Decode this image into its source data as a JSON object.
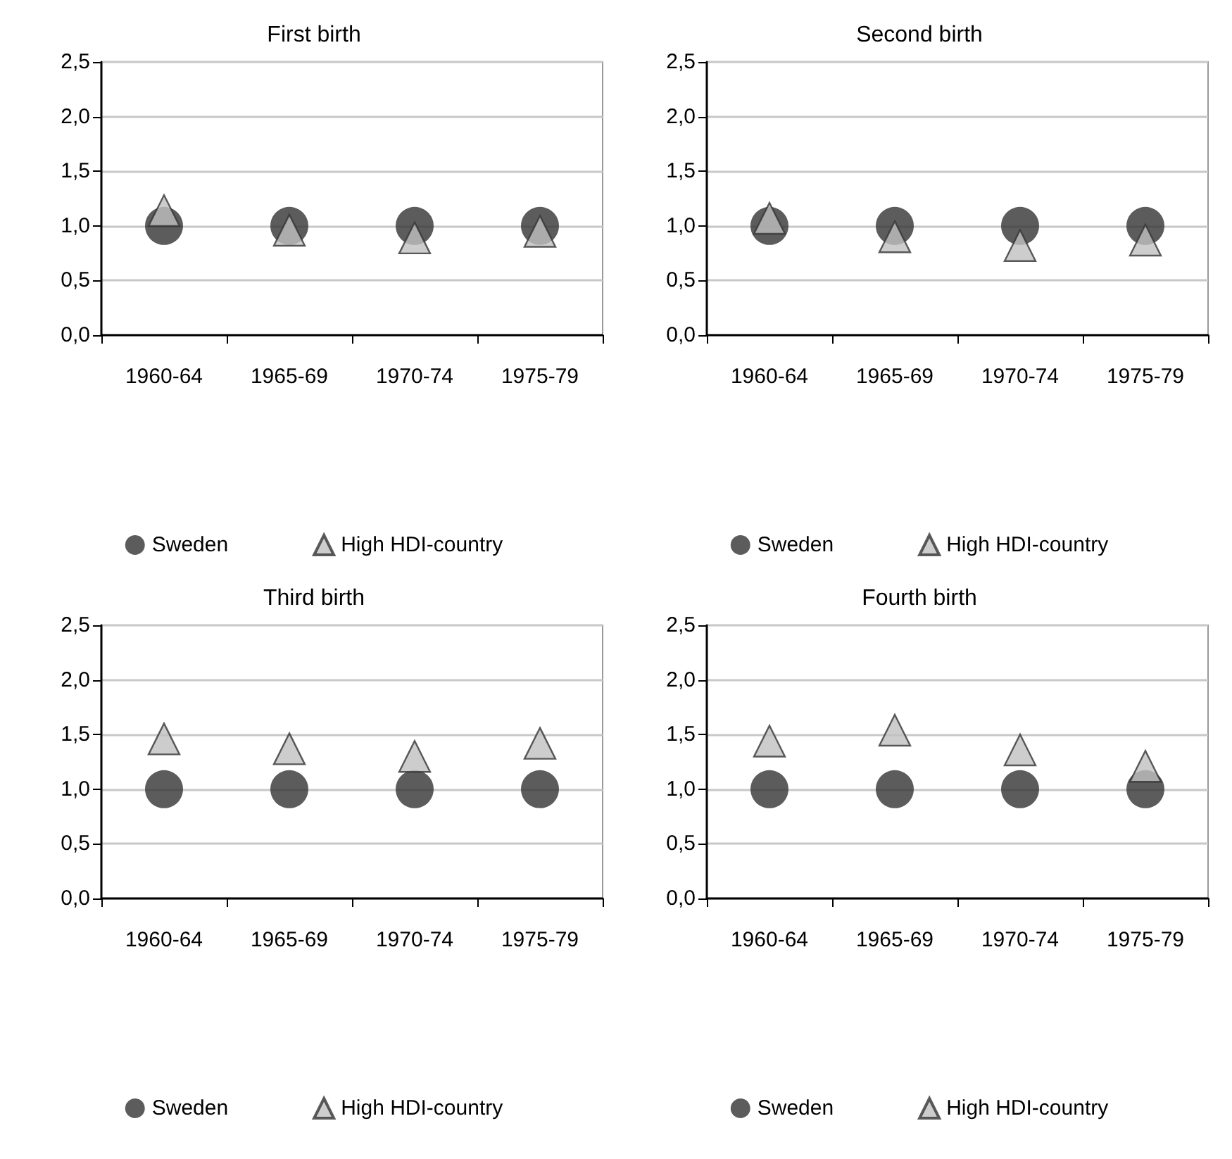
{
  "chart_data": [
    {
      "type": "scatter",
      "title": "First birth",
      "categories": [
        "1960-64",
        "1965-69",
        "1970-74",
        "1975-79"
      ],
      "series": [
        {
          "name": "Sweden",
          "color": "#333333",
          "marker": "circle",
          "values": [
            1.0,
            1.0,
            1.0,
            1.0
          ]
        },
        {
          "name": "High HDI-country",
          "color": "#c0c0c0",
          "marker": "triangle",
          "values": [
            1.14,
            0.96,
            0.89,
            0.95
          ]
        }
      ],
      "ylim": [
        0,
        2.5
      ],
      "yticks": [
        {
          "value": 0,
          "label": "0,0"
        },
        {
          "value": 0.5,
          "label": "0,5"
        },
        {
          "value": 1,
          "label": "1,0"
        },
        {
          "value": 1.5,
          "label": "1,5"
        },
        {
          "value": 2,
          "label": "2,0"
        },
        {
          "value": 2.5,
          "label": "2,5"
        }
      ],
      "grid": "y",
      "legend": "bottom"
    },
    {
      "type": "scatter",
      "title": "Second birth",
      "categories": [
        "1960-64",
        "1965-69",
        "1970-74",
        "1975-79"
      ],
      "series": [
        {
          "name": "Sweden",
          "color": "#333333",
          "marker": "circle",
          "values": [
            1.0,
            1.0,
            1.0,
            1.0
          ]
        },
        {
          "name": "High HDI-country",
          "color": "#c0c0c0",
          "marker": "triangle",
          "values": [
            1.07,
            0.9,
            0.82,
            0.87
          ]
        }
      ],
      "ylim": [
        0,
        2.5
      ],
      "yticks": [
        {
          "value": 0,
          "label": "0,0"
        },
        {
          "value": 0.5,
          "label": "0,5"
        },
        {
          "value": 1,
          "label": "1,0"
        },
        {
          "value": 1.5,
          "label": "1,5"
        },
        {
          "value": 2,
          "label": "2,0"
        },
        {
          "value": 2.5,
          "label": "2,5"
        }
      ],
      "grid": "y",
      "legend": "bottom"
    },
    {
      "type": "scatter",
      "title": "Third birth",
      "categories": [
        "1960-64",
        "1965-69",
        "1970-74",
        "1975-79"
      ],
      "series": [
        {
          "name": "Sweden",
          "color": "#333333",
          "marker": "circle",
          "values": [
            1.0,
            1.0,
            1.0,
            1.0
          ]
        },
        {
          "name": "High HDI-country",
          "color": "#c0c0c0",
          "marker": "triangle",
          "values": [
            1.46,
            1.37,
            1.3,
            1.42
          ]
        }
      ],
      "ylim": [
        0,
        2.5
      ],
      "yticks": [
        {
          "value": 0,
          "label": "0,0"
        },
        {
          "value": 0.5,
          "label": "0,5"
        },
        {
          "value": 1,
          "label": "1,0"
        },
        {
          "value": 1.5,
          "label": "1,5"
        },
        {
          "value": 2,
          "label": "2,0"
        },
        {
          "value": 2.5,
          "label": "2,5"
        }
      ],
      "grid": "y",
      "legend": "bottom"
    },
    {
      "type": "scatter",
      "title": "Fourth birth",
      "categories": [
        "1960-64",
        "1965-69",
        "1970-74",
        "1975-79"
      ],
      "series": [
        {
          "name": "Sweden",
          "color": "#333333",
          "marker": "circle",
          "values": [
            1.0,
            1.0,
            1.0,
            1.0
          ]
        },
        {
          "name": "High HDI-country",
          "color": "#c0c0c0",
          "marker": "triangle",
          "values": [
            1.44,
            1.54,
            1.36,
            1.21
          ]
        }
      ],
      "ylim": [
        0,
        2.5
      ],
      "yticks": [
        {
          "value": 0,
          "label": "0,0"
        },
        {
          "value": 0.5,
          "label": "0,5"
        },
        {
          "value": 1,
          "label": "1,0"
        },
        {
          "value": 1.5,
          "label": "1,5"
        },
        {
          "value": 2,
          "label": "2,0"
        },
        {
          "value": 2.5,
          "label": "2,5"
        }
      ],
      "grid": "y",
      "legend": "bottom"
    }
  ]
}
